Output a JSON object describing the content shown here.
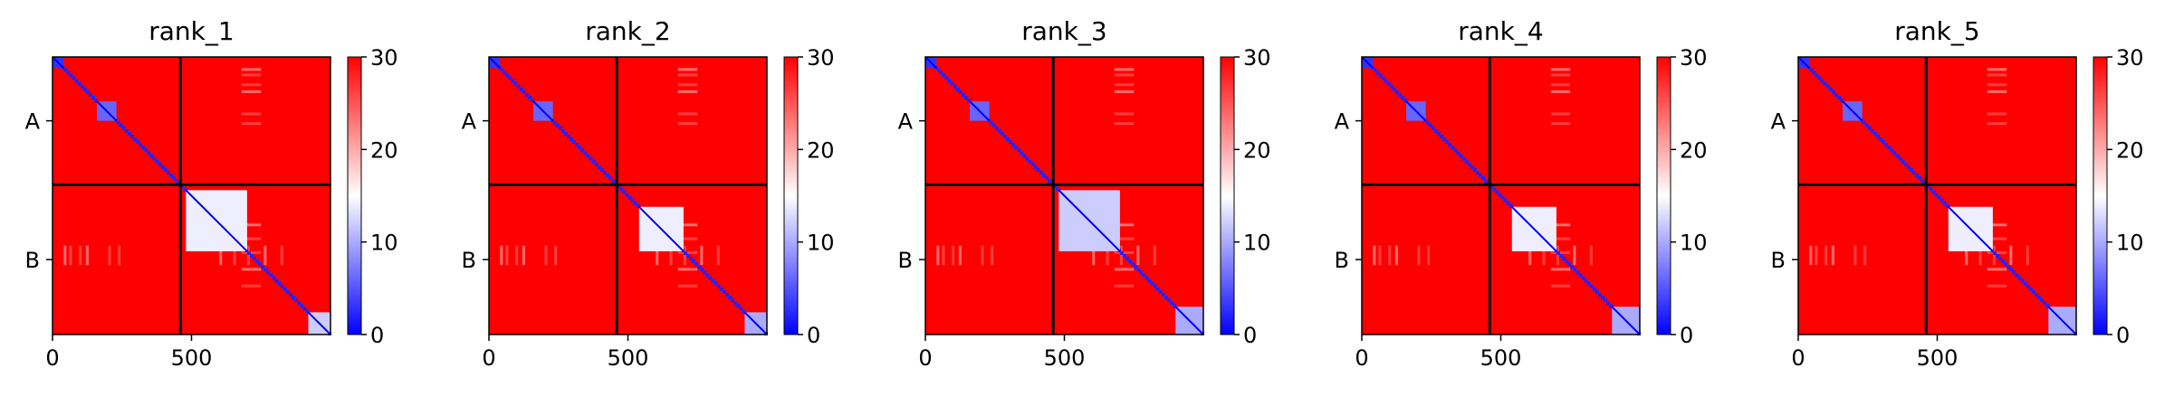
{
  "colors": {
    "low": "#0000ff",
    "mid": "#ffffff",
    "high": "#ff0000",
    "divider": "#000000"
  },
  "chart_data": [
    {
      "type": "heatmap",
      "title": "rank_1",
      "x_ticks": [
        "0",
        "500"
      ],
      "y_ticks": [
        "A",
        "B"
      ],
      "colorbar": {
        "ticks": [
          "0",
          "10",
          "20",
          "30"
        ],
        "range": [
          0,
          30
        ],
        "colormap": "bwr"
      },
      "chain_boundary": 460,
      "residues": 1000,
      "features": [
        {
          "from": 0,
          "to": 40,
          "value": 3
        },
        {
          "from": 160,
          "to": 230,
          "value": 6
        },
        {
          "from": 480,
          "to": 700,
          "value": 14
        },
        {
          "from": 920,
          "to": 1000,
          "value": 12
        }
      ]
    },
    {
      "type": "heatmap",
      "title": "rank_2",
      "x_ticks": [
        "0",
        "500"
      ],
      "y_ticks": [
        "A",
        "B"
      ],
      "colorbar": {
        "ticks": [
          "0",
          "10",
          "20",
          "30"
        ],
        "range": [
          0,
          30
        ],
        "colormap": "bwr"
      },
      "chain_boundary": 460,
      "residues": 1000,
      "features": [
        {
          "from": 0,
          "to": 40,
          "value": 3
        },
        {
          "from": 160,
          "to": 230,
          "value": 6
        },
        {
          "from": 540,
          "to": 700,
          "value": 14
        },
        {
          "from": 920,
          "to": 1000,
          "value": 10
        }
      ]
    },
    {
      "type": "heatmap",
      "title": "rank_3",
      "x_ticks": [
        "0",
        "500"
      ],
      "y_ticks": [
        "A",
        "B"
      ],
      "colorbar": {
        "ticks": [
          "0",
          "10",
          "20",
          "30"
        ],
        "range": [
          0,
          30
        ],
        "colormap": "bwr"
      },
      "chain_boundary": 460,
      "residues": 1000,
      "features": [
        {
          "from": 0,
          "to": 40,
          "value": 3
        },
        {
          "from": 160,
          "to": 230,
          "value": 6
        },
        {
          "from": 480,
          "to": 700,
          "value": 12
        },
        {
          "from": 900,
          "to": 1000,
          "value": 10
        }
      ]
    },
    {
      "type": "heatmap",
      "title": "rank_4",
      "x_ticks": [
        "0",
        "500"
      ],
      "y_ticks": [
        "A",
        "B"
      ],
      "colorbar": {
        "ticks": [
          "0",
          "10",
          "20",
          "30"
        ],
        "range": [
          0,
          30
        ],
        "colormap": "bwr"
      },
      "chain_boundary": 460,
      "residues": 1000,
      "features": [
        {
          "from": 0,
          "to": 40,
          "value": 3
        },
        {
          "from": 160,
          "to": 230,
          "value": 6
        },
        {
          "from": 540,
          "to": 700,
          "value": 14
        },
        {
          "from": 900,
          "to": 1000,
          "value": 10
        }
      ]
    },
    {
      "type": "heatmap",
      "title": "rank_5",
      "x_ticks": [
        "0",
        "500"
      ],
      "y_ticks": [
        "A",
        "B"
      ],
      "colorbar": {
        "ticks": [
          "0",
          "10",
          "20",
          "30"
        ],
        "range": [
          0,
          30
        ],
        "colormap": "bwr"
      },
      "chain_boundary": 460,
      "residues": 1000,
      "features": [
        {
          "from": 0,
          "to": 40,
          "value": 3
        },
        {
          "from": 160,
          "to": 230,
          "value": 6
        },
        {
          "from": 540,
          "to": 700,
          "value": 14
        },
        {
          "from": 900,
          "to": 1000,
          "value": 10
        }
      ]
    }
  ]
}
